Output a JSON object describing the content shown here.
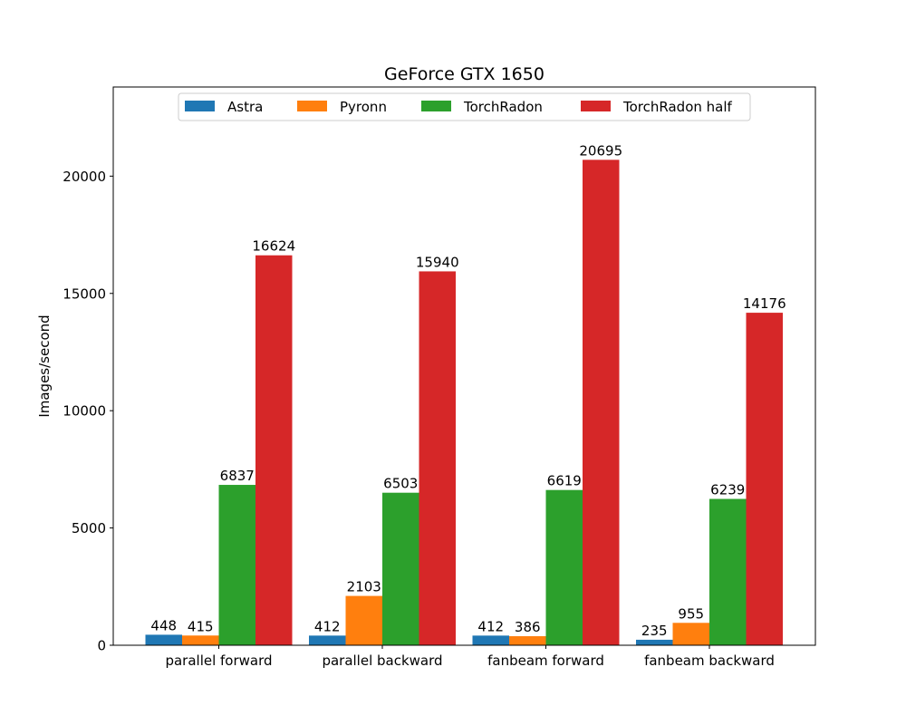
{
  "chart_data": {
    "type": "bar",
    "title": "GeForce GTX 1650",
    "xlabel": "",
    "ylabel": "Images/second",
    "categories": [
      "parallel forward",
      "parallel backward",
      "fanbeam forward",
      "fanbeam backward"
    ],
    "series": [
      {
        "name": "Astra",
        "color": "#1f77b4",
        "values": [
          448,
          412,
          412,
          235
        ]
      },
      {
        "name": "Pyronn",
        "color": "#ff7f0e",
        "values": [
          415,
          2103,
          386,
          955
        ]
      },
      {
        "name": "TorchRadon",
        "color": "#2ca02c",
        "values": [
          6837,
          6503,
          6619,
          6239
        ]
      },
      {
        "name": "TorchRadon half",
        "color": "#d62728",
        "values": [
          16624,
          15940,
          20695,
          14176
        ]
      }
    ],
    "ylim": [
      0,
      23800
    ],
    "yticks": [
      0,
      5000,
      10000,
      15000,
      20000
    ],
    "legend_position": "top-center",
    "grid": false
  }
}
